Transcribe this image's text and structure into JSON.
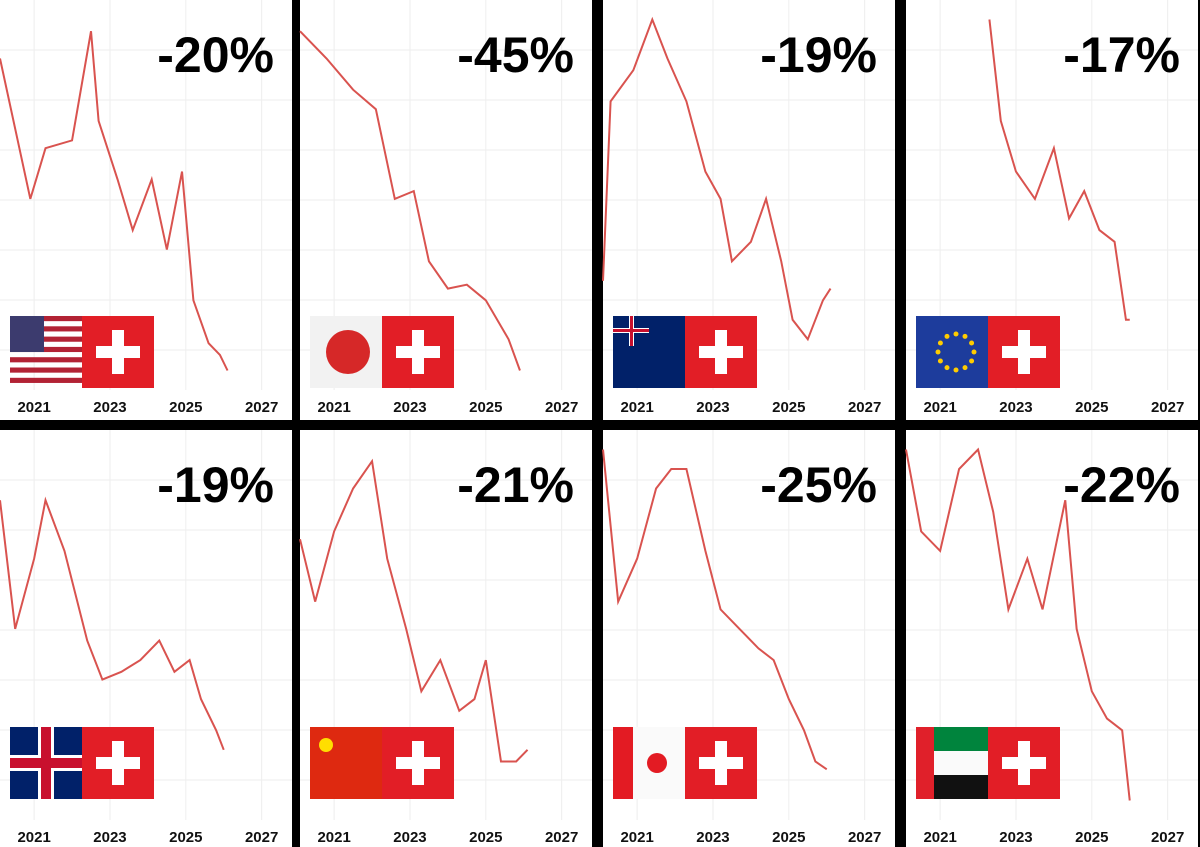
{
  "chart_data": [
    {
      "type": "line",
      "headline": {
        "value": -20,
        "label": "-20%"
      },
      "x": [
        2020.1,
        2020.5,
        2020.9,
        2021.3,
        2022.0,
        2022.5,
        2022.7,
        2023.2,
        2023.6,
        2024.1,
        2024.5,
        2024.9,
        2025.2,
        2025.6,
        2025.9,
        2026.1
      ],
      "values": [
        85,
        67,
        49,
        62,
        64,
        92,
        69,
        54,
        41,
        54,
        36,
        56,
        23,
        12,
        9,
        5
      ],
      "color": "#d9534f",
      "xlim": [
        2020.1,
        2027.8
      ],
      "xticks": [
        2021,
        2023,
        2025,
        2027
      ],
      "ylim": [
        0,
        100
      ],
      "grid": true
    },
    {
      "type": "line",
      "headline": {
        "value": -45,
        "label": "-45%"
      },
      "x": [
        2020.1,
        2020.8,
        2021.5,
        2022.1,
        2022.6,
        2023.1,
        2023.5,
        2024.0,
        2024.5,
        2025.0,
        2025.6,
        2025.9
      ],
      "values": [
        92,
        85,
        77,
        72,
        49,
        51,
        33,
        26,
        27,
        23,
        13,
        5
      ],
      "color": "#d9534f",
      "xlim": [
        2020.1,
        2027.8
      ],
      "xticks": [
        2021,
        2023,
        2025,
        2027
      ],
      "ylim": [
        0,
        100
      ],
      "grid": true
    },
    {
      "type": "line",
      "headline": {
        "value": -19,
        "label": "-19%"
      },
      "x": [
        2020.1,
        2020.3,
        2020.9,
        2021.4,
        2021.8,
        2022.3,
        2022.8,
        2023.2,
        2023.5,
        2024.0,
        2024.4,
        2024.8,
        2025.1,
        2025.5,
        2025.9,
        2026.1
      ],
      "values": [
        28,
        74,
        82,
        95,
        85,
        74,
        56,
        49,
        33,
        38,
        49,
        33,
        18,
        13,
        23,
        26
      ],
      "color": "#d9534f",
      "xlim": [
        2020.1,
        2027.8
      ],
      "xticks": [
        2021,
        2023,
        2025,
        2027
      ],
      "ylim": [
        0,
        100
      ],
      "grid": true
    },
    {
      "type": "line",
      "headline": {
        "value": -17,
        "label": "-17%"
      },
      "x": [
        2022.3,
        2022.6,
        2023.0,
        2023.5,
        2024.0,
        2024.4,
        2024.8,
        2025.2,
        2025.6,
        2025.9,
        2026.0
      ],
      "values": [
        95,
        69,
        56,
        49,
        62,
        44,
        51,
        41,
        38,
        18,
        18
      ],
      "color": "#d9534f",
      "xlim": [
        2020.1,
        2027.8
      ],
      "xticks": [
        2021,
        2023,
        2025,
        2027
      ],
      "ylim": [
        0,
        100
      ],
      "grid": true
    },
    {
      "type": "line",
      "headline": {
        "value": -19,
        "label": "-19%"
      },
      "x": [
        2020.1,
        2020.5,
        2021.0,
        2021.3,
        2021.8,
        2022.4,
        2022.8,
        2023.3,
        2023.8,
        2024.3,
        2024.7,
        2025.1,
        2025.4,
        2025.8,
        2026.0
      ],
      "values": [
        82,
        49,
        67,
        82,
        69,
        46,
        36,
        38,
        41,
        46,
        38,
        41,
        31,
        23,
        18
      ],
      "color": "#d9534f",
      "xlim": [
        2020.1,
        2027.8
      ],
      "xticks": [
        2021,
        2023,
        2025,
        2027
      ],
      "ylim": [
        0,
        100
      ],
      "grid": true
    },
    {
      "type": "line",
      "headline": {
        "value": -21,
        "label": "-21%"
      },
      "x": [
        2020.1,
        2020.5,
        2021.0,
        2021.5,
        2022.0,
        2022.4,
        2022.9,
        2023.3,
        2023.8,
        2024.3,
        2024.7,
        2025.0,
        2025.4,
        2025.8,
        2026.1
      ],
      "values": [
        72,
        56,
        74,
        85,
        92,
        67,
        49,
        33,
        41,
        28,
        31,
        41,
        15,
        15,
        18
      ],
      "color": "#d9534f",
      "xlim": [
        2020.1,
        2027.8
      ],
      "xticks": [
        2021,
        2023,
        2025,
        2027
      ],
      "ylim": [
        0,
        100
      ],
      "grid": true
    },
    {
      "type": "line",
      "headline": {
        "value": -25,
        "label": "-25%"
      },
      "x": [
        2020.1,
        2020.5,
        2021.0,
        2021.5,
        2021.9,
        2022.3,
        2022.8,
        2023.2,
        2023.7,
        2024.2,
        2024.6,
        2025.0,
        2025.4,
        2025.7,
        2026.0
      ],
      "values": [
        95,
        56,
        67,
        85,
        90,
        90,
        69,
        54,
        49,
        44,
        41,
        31,
        23,
        15,
        13
      ],
      "color": "#d9534f",
      "xlim": [
        2020.1,
        2027.8
      ],
      "xticks": [
        2021,
        2023,
        2025,
        2027
      ],
      "ylim": [
        0,
        100
      ],
      "grid": true
    },
    {
      "type": "line",
      "headline": {
        "value": -22,
        "label": "-22%"
      },
      "x": [
        2020.1,
        2020.5,
        2021.0,
        2021.5,
        2022.0,
        2022.4,
        2022.8,
        2023.3,
        2023.7,
        2024.3,
        2024.6,
        2025.0,
        2025.4,
        2025.8,
        2026.0
      ],
      "values": [
        95,
        74,
        69,
        90,
        95,
        79,
        54,
        67,
        54,
        82,
        49,
        33,
        26,
        23,
        5
      ],
      "color": "#d9534f",
      "xlim": [
        2020.1,
        2027.8
      ],
      "xticks": [
        2021,
        2023,
        2025,
        2027
      ],
      "ylim": [
        0,
        100
      ],
      "grid": true
    }
  ]
}
